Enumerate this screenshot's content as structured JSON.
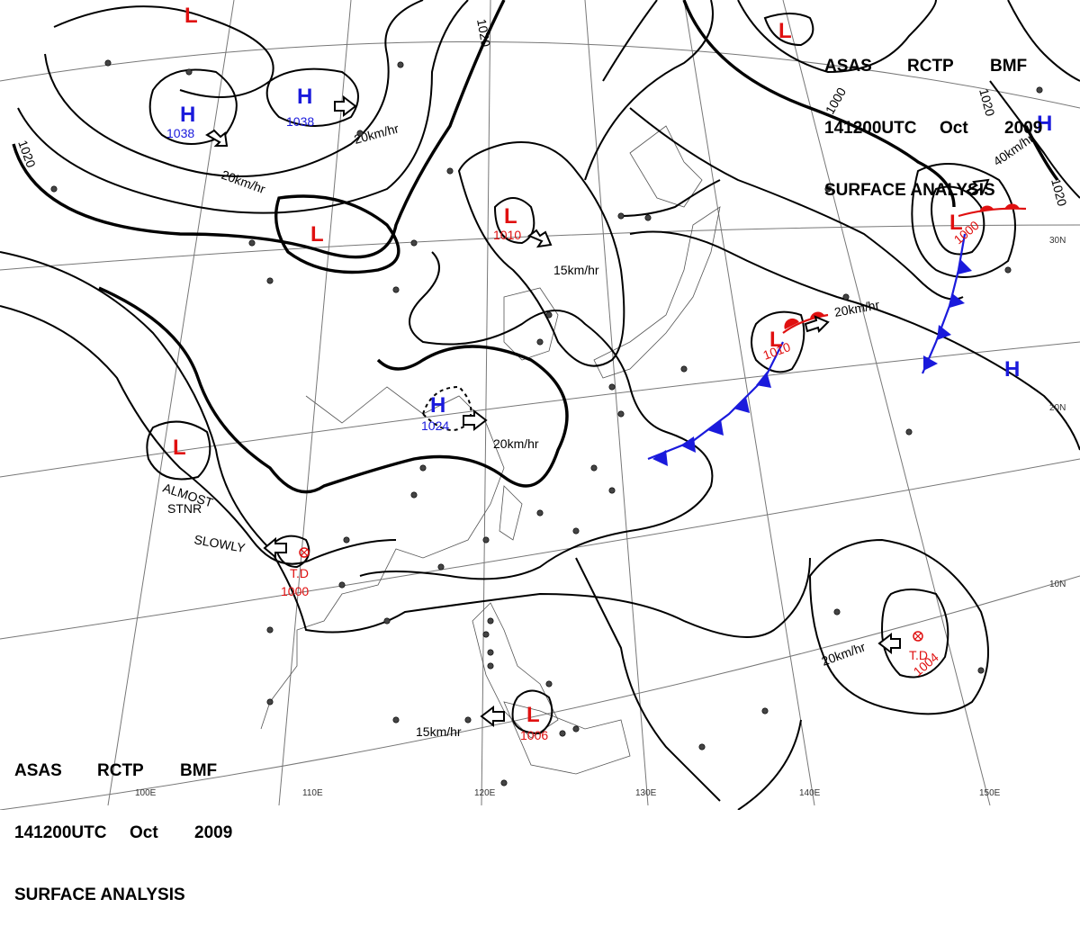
{
  "header": {
    "line1": [
      "ASAS",
      "RCTP",
      "BMF"
    ],
    "line2": [
      "141200UTC",
      "Oct",
      "2009"
    ],
    "line3": "SURFACE ANALYSIS"
  },
  "pressure_systems": [
    {
      "type": "H",
      "pressure": "1038",
      "color": "#1a1adc"
    },
    {
      "type": "H",
      "pressure": "1038",
      "color": "#1a1adc"
    },
    {
      "type": "H",
      "pressure": "1024",
      "color": "#1a1adc"
    },
    {
      "type": "H",
      "pressure": "",
      "color": "#1a1adc"
    },
    {
      "type": "H",
      "pressure": "",
      "color": "#1a1adc"
    },
    {
      "type": "L",
      "pressure": "1010",
      "color": "#e01010"
    },
    {
      "type": "L",
      "pressure": "1010",
      "color": "#e01010"
    },
    {
      "type": "L",
      "pressure": "1000",
      "color": "#e01010"
    },
    {
      "type": "L",
      "pressure": "1006",
      "color": "#e01010"
    },
    {
      "type": "L",
      "pressure": "",
      "color": "#e01010"
    },
    {
      "type": "L",
      "pressure": "",
      "color": "#e01010"
    },
    {
      "type": "L",
      "pressure": "",
      "color": "#e01010"
    },
    {
      "type": "L",
      "pressure": "",
      "color": "#e01010"
    }
  ],
  "tropical_depressions": [
    {
      "label": "T.D",
      "pressure": "1000"
    },
    {
      "label": "T.D",
      "pressure": "1004"
    }
  ],
  "motion_labels": [
    "20km/hr",
    "20km/hr",
    "15km/hr",
    "20km/hr",
    "20km/hr",
    "40km/hr",
    "20km/hr",
    "15km/hr"
  ],
  "annotations": [
    "ALMOST",
    "STNR",
    "SLOWLY"
  ],
  "isobar_labels": [
    "1020",
    "1020",
    "1000",
    "1020",
    "1020"
  ],
  "lon_labels": [
    "100E",
    "110E",
    "120E",
    "130E",
    "140E",
    "150E"
  ],
  "lat_labels": [
    "30N",
    "20N",
    "10N"
  ],
  "colors": {
    "high": "#1a1adc",
    "low": "#e01010",
    "isobar": "#000000",
    "grid": "#777777"
  }
}
